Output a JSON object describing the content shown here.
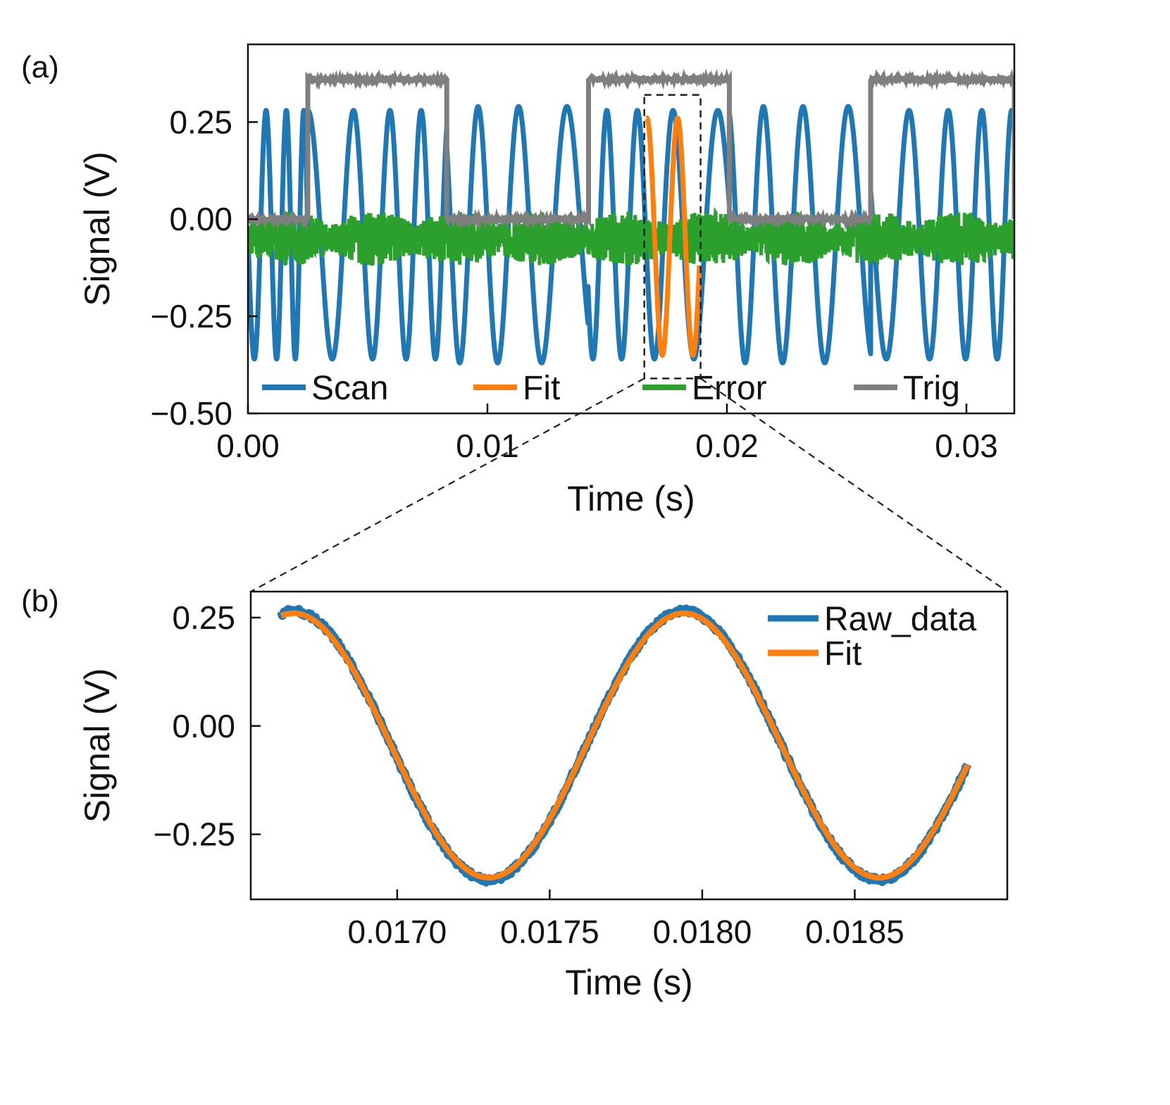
{
  "colors": {
    "scan": "#1f77b4",
    "fit": "#ff7f0e",
    "error": "#2ca02c",
    "trig": "#7f7f7f"
  },
  "chart_data": [
    {
      "panel_label": "(a)",
      "type": "line",
      "xlabel": "Time (s)",
      "ylabel": "Signal (V)",
      "xlim": [
        0.0,
        0.032
      ],
      "ylim": [
        -0.5,
        0.45
      ],
      "xticks": [
        0.0,
        0.01,
        0.02,
        0.03
      ],
      "xtick_labels": [
        "0.00",
        "0.01",
        "0.02",
        "0.03"
      ],
      "yticks": [
        0.25,
        0.0,
        -0.25,
        -0.5
      ],
      "ytick_labels": [
        "0.25",
        "0.00",
        "−0.25",
        "−0.50"
      ],
      "legend_position": "bottom (single row)",
      "zoom_box": {
        "x": [
          0.01655,
          0.0189
        ],
        "y": [
          -0.41,
          0.32
        ]
      },
      "series": [
        {
          "name": "Scan",
          "color_key": "scan",
          "description": "repeating interference fringes",
          "segments": [
            {
              "x": [
                0.0,
                0.0025
              ],
              "amp": 0.32,
              "offset": -0.04,
              "freq_start": 900,
              "freq_end": 1500,
              "phase": 1.5708
            },
            {
              "x": [
                0.0025,
                0.0083
              ],
              "amp": 0.32,
              "offset": -0.04,
              "freq_start": 450,
              "freq_end": 900,
              "phase": 0
            },
            {
              "x": [
                0.0083,
                0.0142
              ],
              "amp": 0.33,
              "offset": -0.04,
              "freq_start": 700,
              "freq_end": 400,
              "phase": 0.8
            },
            {
              "x": [
                0.0142,
                0.0201
              ],
              "amp": 0.32,
              "offset": -0.04,
              "freq_start": 900,
              "freq_end": 420,
              "phase": 2.0
            },
            {
              "x": [
                0.0201,
                0.026
              ],
              "amp": 0.33,
              "offset": -0.04,
              "freq_start": 700,
              "freq_end": 450,
              "phase": 0.3
            },
            {
              "x": [
                0.026,
                0.032
              ],
              "amp": 0.32,
              "offset": -0.04,
              "freq_start": 450,
              "freq_end": 850,
              "phase": 1.2
            }
          ]
        },
        {
          "name": "Fit",
          "color_key": "fit",
          "x_range": [
            0.01665,
            0.01885
          ],
          "amp": 0.305,
          "offset": -0.045,
          "period": 0.00128,
          "t_peak": 0.01794
        },
        {
          "name": "Error",
          "color_key": "error",
          "description": "noisy error signal",
          "center": -0.05,
          "noise_amp": 0.07
        },
        {
          "name": "Trig",
          "color_key": "trig",
          "high": 0.36,
          "low": 0.0,
          "high_intervals": [
            [
              0.0025,
              0.0083
            ],
            [
              0.0142,
              0.0201
            ],
            [
              0.026,
              0.032
            ]
          ]
        }
      ]
    },
    {
      "panel_label": "(b)",
      "type": "line",
      "xlabel": "Time (s)",
      "ylabel": "Signal (V)",
      "xlim": [
        0.01652,
        0.019
      ],
      "ylim": [
        -0.4,
        0.31
      ],
      "xticks": [
        0.017,
        0.0175,
        0.018,
        0.0185
      ],
      "xtick_labels": [
        "0.0170",
        "0.0175",
        "0.0180",
        "0.0185"
      ],
      "yticks": [
        0.25,
        0.0,
        -0.25
      ],
      "ytick_labels": [
        "0.25",
        "0.00",
        "−0.25"
      ],
      "legend_position": "top-right",
      "series": [
        {
          "name": "Raw_data",
          "color_key": "scan",
          "x_range": [
            0.01662,
            0.01887
          ],
          "amp": 0.31,
          "offset": -0.045,
          "period": 0.00128,
          "t_peak": 0.01794
        },
        {
          "name": "Fit",
          "color_key": "fit",
          "x_range": [
            0.01662,
            0.01887
          ],
          "amp": 0.305,
          "offset": -0.045,
          "period": 0.00128,
          "t_peak": 0.01794
        }
      ]
    }
  ]
}
